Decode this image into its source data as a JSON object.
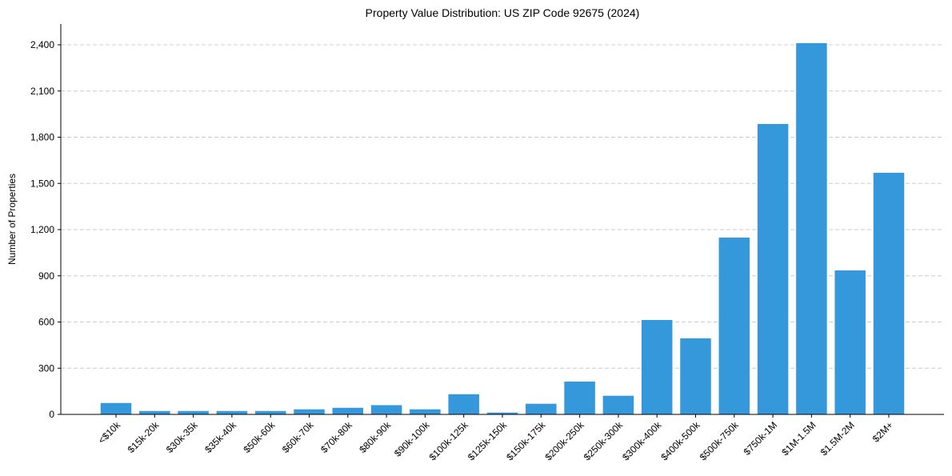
{
  "chart_data": {
    "type": "bar",
    "title": "Property Value Distribution: US ZIP Code 92675 (2024)",
    "xlabel": "",
    "ylabel": "Number of Properties",
    "ylim": [
      0,
      2545
    ],
    "yticks": [
      0,
      300,
      600,
      900,
      1200,
      1500,
      1800,
      2100,
      2400
    ],
    "ytick_labels": [
      "0",
      "300",
      "600",
      "900",
      "1,200",
      "1,500",
      "1,800",
      "2,100",
      "2,400"
    ],
    "grid": "y-dashed",
    "color": "#3498db",
    "categories": [
      "<$10k",
      "$15k-20k",
      "$30k-35k",
      "$35k-40k",
      "$50k-60k",
      "$60k-70k",
      "$70k-80k",
      "$80k-90k",
      "$90k-100k",
      "$100k-125k",
      "$125k-150k",
      "$150k-175k",
      "$200k-250k",
      "$250k-300k",
      "$300k-400k",
      "$400k-500k",
      "$500k-750k",
      "$750k-1M",
      "$1M-1.5M",
      "$1.5M-2M",
      "$2M+"
    ],
    "values": [
      74,
      22,
      22,
      22,
      22,
      33,
      43,
      60,
      33,
      131,
      12,
      69,
      213,
      121,
      613,
      494,
      1148,
      1886,
      2411,
      935,
      1569
    ]
  }
}
